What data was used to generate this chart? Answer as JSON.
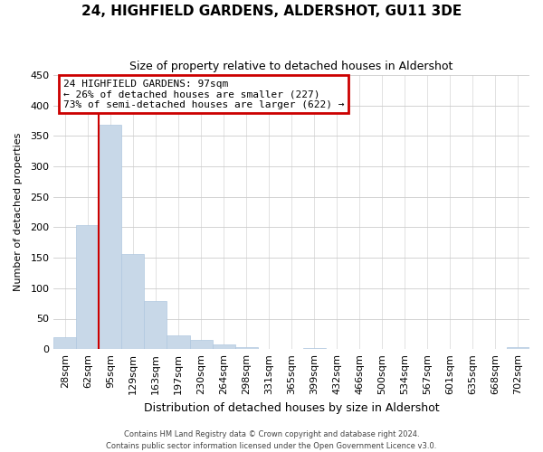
{
  "title": "24, HIGHFIELD GARDENS, ALDERSHOT, GU11 3DE",
  "subtitle": "Size of property relative to detached houses in Aldershot",
  "xlabel": "Distribution of detached houses by size in Aldershot",
  "ylabel": "Number of detached properties",
  "footer_line1": "Contains HM Land Registry data © Crown copyright and database right 2024.",
  "footer_line2": "Contains public sector information licensed under the Open Government Licence v3.0.",
  "bin_labels": [
    "28sqm",
    "62sqm",
    "95sqm",
    "129sqm",
    "163sqm",
    "197sqm",
    "230sqm",
    "264sqm",
    "298sqm",
    "331sqm",
    "365sqm",
    "399sqm",
    "432sqm",
    "466sqm",
    "500sqm",
    "534sqm",
    "567sqm",
    "601sqm",
    "635sqm",
    "668sqm",
    "702sqm"
  ],
  "bar_values": [
    20,
    203,
    368,
    156,
    79,
    23,
    15,
    8,
    3,
    0,
    0,
    2,
    0,
    0,
    0,
    0,
    0,
    0,
    0,
    0,
    3
  ],
  "bar_color": "#c8d8e8",
  "bar_edge_color": "#b0c8e0",
  "ylim": [
    0,
    450
  ],
  "yticks": [
    0,
    50,
    100,
    150,
    200,
    250,
    300,
    350,
    400,
    450
  ],
  "vline_color": "#cc0000",
  "vline_x_index": 2,
  "annotation_title": "24 HIGHFIELD GARDENS: 97sqm",
  "annotation_line2": "← 26% of detached houses are smaller (227)",
  "annotation_line3": "73% of semi-detached houses are larger (622) →",
  "annotation_box_color": "#cc0000",
  "background_color": "#ffffff",
  "grid_color": "#cccccc",
  "title_fontsize": 11,
  "subtitle_fontsize": 9,
  "xlabel_fontsize": 9,
  "ylabel_fontsize": 8,
  "tick_fontsize": 8,
  "annotation_fontsize": 8,
  "footer_fontsize": 6
}
